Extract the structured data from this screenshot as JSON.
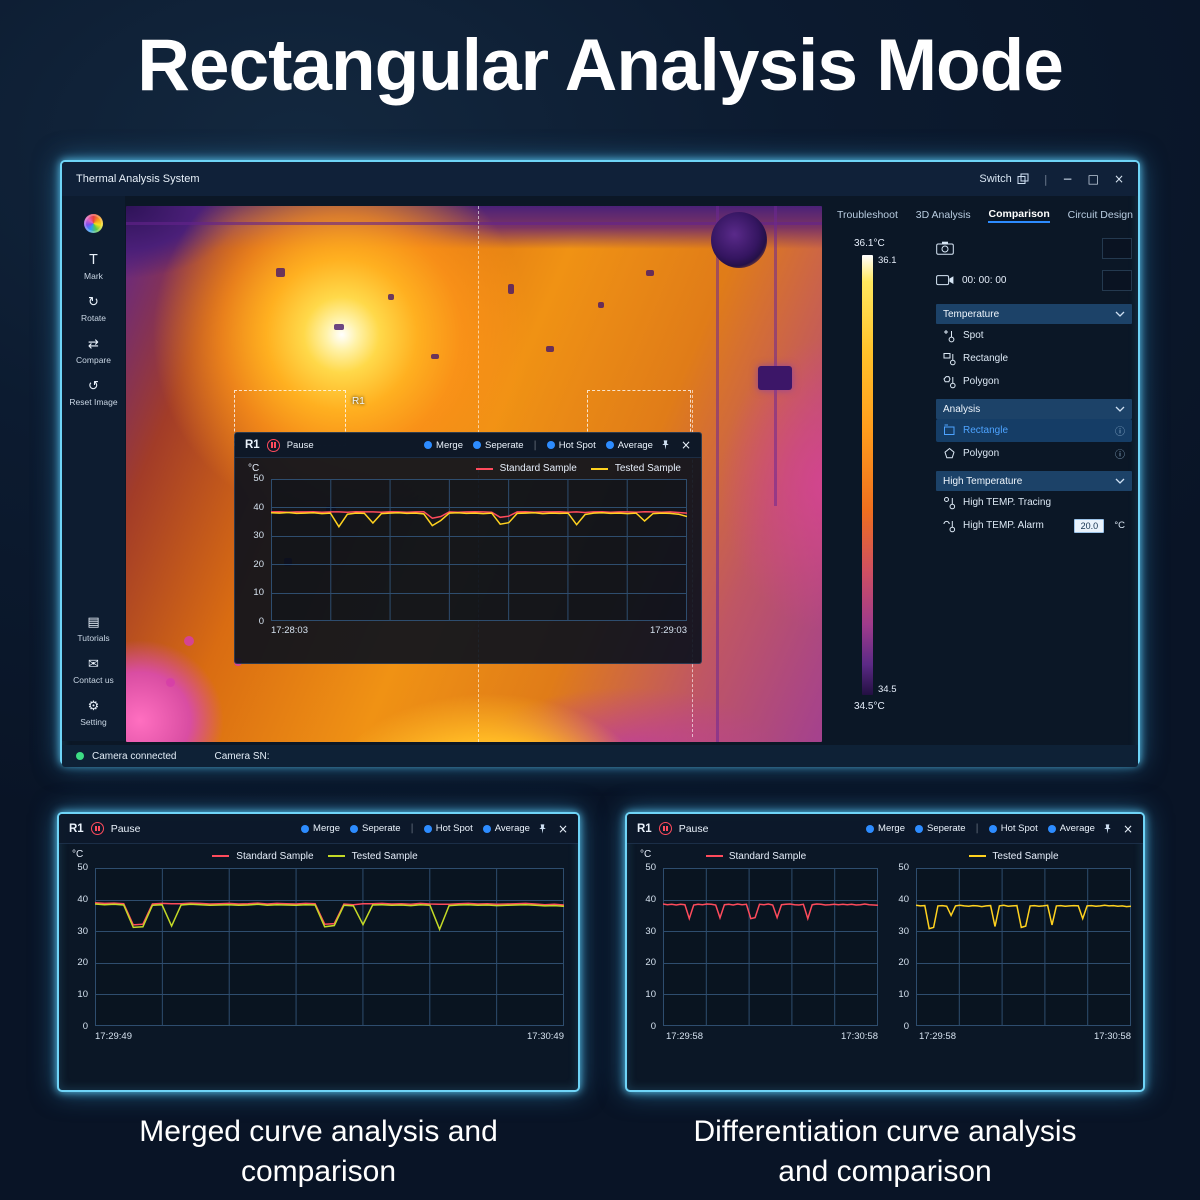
{
  "page": {
    "title": "Rectangular Analysis Mode",
    "captions": {
      "left": "Merged curve analysis and comparison",
      "right": "Differentiation curve analysis and comparison"
    }
  },
  "colors": {
    "accent_blue": "#2d8cff",
    "glow_cyan": "#6fd4f7",
    "standard_red": "#ff4b5c",
    "tested_yellow": "#ffd21f",
    "tested_green": "#c3d926",
    "status_green": "#3ddc84"
  },
  "icons": {
    "close_glyph": "×",
    "minimize_glyph": "−",
    "maximize_glyph": "□",
    "info_glyph": "ⓘ",
    "divider_glyph": "|",
    "mark_glyph": "T",
    "rotate_glyph": "↻",
    "compare_glyph": "⇄",
    "reset_glyph": "↺",
    "tutorials_glyph": "▤",
    "contact_glyph": "✉",
    "setting_glyph": "⚙"
  },
  "window": {
    "title": "Thermal Analysis System",
    "switch_label": "Switch",
    "statusbar": {
      "camera_status": "Camera connected",
      "camera_sn": "Camera SN:"
    }
  },
  "sidebar": {
    "items": [
      {
        "label": "Mark"
      },
      {
        "label": "Rotate"
      },
      {
        "label": "Compare"
      },
      {
        "label": "Reset Image"
      },
      {
        "label": "Tutorials"
      },
      {
        "label": "Contact us"
      },
      {
        "label": "Setting"
      }
    ]
  },
  "right_panel": {
    "tabs": [
      {
        "label": "Troubleshoot"
      },
      {
        "label": "3D Analysis"
      },
      {
        "label": "Comparison"
      },
      {
        "label": "Circuit Design"
      }
    ],
    "active_tab": "Comparison",
    "record_time": "00: 00: 00",
    "temperature_section": {
      "title": "Temperature",
      "items": [
        {
          "label": "Spot"
        },
        {
          "label": "Rectangle"
        },
        {
          "label": "Polygon"
        }
      ]
    },
    "analysis_section": {
      "title": "Analysis",
      "items": [
        {
          "label": "Rectangle"
        },
        {
          "label": "Polygon"
        }
      ]
    },
    "high_temp_section": {
      "title": "High Temperature",
      "tracing_label": "High TEMP. Tracing",
      "alarm_label": "High TEMP. Alarm",
      "alarm_value": "20.0",
      "alarm_unit": "°C"
    }
  },
  "scale_bar": {
    "top_label": "36.1°C",
    "top_tick": "36.1",
    "bottom_tick": "34.5",
    "bottom_label": "34.5°C"
  },
  "thermal": {
    "roi_label": "R1"
  },
  "chart_header": {
    "marker": "R1",
    "pause_label": "Pause",
    "options": [
      "Merge",
      "Seperate",
      "Hot Spot",
      "Average"
    ]
  },
  "chart_data": {
    "overlay": {
      "type": "line",
      "unit": "°C",
      "ylim": [
        0,
        50
      ],
      "yticks": [
        0,
        10,
        20,
        30,
        40,
        50
      ],
      "vdiv": 7,
      "x_labels": [
        "17:28:03",
        "17:29:03"
      ],
      "series": [
        {
          "name": "Standard Sample",
          "color": "#ff4b5c",
          "values": [
            38.4,
            38.5,
            38.3,
            38.4,
            38.4,
            38.5,
            38.3,
            38.4,
            38.4,
            38.3,
            38.5,
            38.4,
            38.4,
            38.3,
            38.5,
            38.4,
            38.3,
            38.4,
            38.5,
            36.2,
            36.8,
            38.4,
            38.3,
            38.4,
            38.5,
            38.4,
            38.3,
            36.5,
            36.9,
            38.4,
            38.5,
            38.3,
            38.4,
            38.4,
            38.5,
            38.3,
            38.4,
            38.2,
            38.4,
            38.5,
            38.3,
            38.4,
            38.4,
            38.3,
            38.5,
            38.4,
            38.3,
            38.4,
            38.2,
            38.0
          ]
        },
        {
          "name": "Tested Sample",
          "color": "#ffd21f",
          "values": [
            38.1,
            38.0,
            38.2,
            37.9,
            38.0,
            38.1,
            37.8,
            38.0,
            33.2,
            37.6,
            38.0,
            37.9,
            34.5,
            37.8,
            38.0,
            38.1,
            37.9,
            38.0,
            37.7,
            33.6,
            35.4,
            38.0,
            38.1,
            37.9,
            38.0,
            37.8,
            38.0,
            34.1,
            34.6,
            37.9,
            38.0,
            38.1,
            37.8,
            38.0,
            37.9,
            38.0,
            33.9,
            37.5,
            38.0,
            38.1,
            37.9,
            38.0,
            37.8,
            38.0,
            35.2,
            37.8,
            38.0,
            37.9,
            37.6,
            36.8
          ]
        }
      ]
    },
    "merged": {
      "type": "line",
      "unit": "°C",
      "ylim": [
        0,
        50
      ],
      "yticks": [
        0,
        10,
        20,
        30,
        40,
        50
      ],
      "vdiv": 7,
      "x_labels": [
        "17:29:49",
        "17:30:49"
      ],
      "series": [
        {
          "name": "Standard Sample",
          "color": "#ff4b5c",
          "values": [
            39.0,
            38.8,
            38.9,
            38.7,
            32.0,
            32.2,
            38.6,
            38.8,
            38.7,
            38.7,
            38.9,
            38.8,
            38.6,
            38.7,
            38.8,
            38.6,
            38.7,
            38.9,
            38.6,
            38.8,
            38.7,
            38.6,
            38.8,
            38.7,
            32.2,
            32.4,
            38.6,
            38.4,
            38.7,
            38.7,
            38.8,
            38.6,
            38.7,
            38.5,
            38.8,
            38.6,
            38.5,
            38.5,
            38.7,
            38.8,
            38.6,
            38.7,
            38.5,
            38.6,
            38.7,
            38.8,
            38.6,
            38.4,
            38.5,
            38.3
          ]
        },
        {
          "name": "Tested Sample",
          "color": "#c3d926",
          "values": [
            38.6,
            38.4,
            38.5,
            38.3,
            31.2,
            31.4,
            38.2,
            38.4,
            31.6,
            38.3,
            38.5,
            38.4,
            38.2,
            38.3,
            38.4,
            38.2,
            38.3,
            38.5,
            38.2,
            38.4,
            38.3,
            38.2,
            38.4,
            38.3,
            31.4,
            31.8,
            38.2,
            38.0,
            32.1,
            38.3,
            38.4,
            38.2,
            38.3,
            38.1,
            38.4,
            38.2,
            30.6,
            38.1,
            38.3,
            38.4,
            38.2,
            38.3,
            38.1,
            38.2,
            38.3,
            38.4,
            38.2,
            38.0,
            38.1,
            37.9
          ]
        }
      ]
    },
    "diff_standard": {
      "type": "line",
      "unit": "°C",
      "ylim": [
        0,
        50
      ],
      "yticks": [
        0,
        10,
        20,
        30,
        40,
        50
      ],
      "vdiv": 5,
      "x_labels": [
        "17:29:58",
        "17:30:58"
      ],
      "series": [
        {
          "name": "Standard Sample",
          "color": "#ff4b5c",
          "values": [
            38.6,
            38.4,
            38.5,
            38.3,
            38.5,
            38.4,
            34.0,
            38.3,
            38.5,
            38.4,
            38.6,
            38.5,
            38.3,
            34.2,
            38.4,
            38.5,
            38.3,
            38.6,
            38.4,
            38.5,
            34.0,
            34.3,
            38.5,
            38.4,
            38.6,
            38.3,
            34.3,
            38.4,
            38.5,
            38.6,
            38.4,
            38.3,
            38.5,
            34.0,
            38.4,
            38.6,
            38.5,
            38.3,
            38.4,
            38.5,
            38.4,
            38.5,
            38.4,
            38.5,
            38.3,
            38.4,
            38.6,
            38.4,
            38.3,
            38.2
          ]
        }
      ]
    },
    "diff_tested": {
      "type": "line",
      "unit": "°C",
      "ylim": [
        0,
        50
      ],
      "yticks": [
        0,
        10,
        20,
        30,
        40,
        50
      ],
      "vdiv": 5,
      "x_labels": [
        "17:29:58",
        "17:30:58"
      ],
      "series": [
        {
          "name": "Tested Sample",
          "color": "#ffd21f",
          "values": [
            38.2,
            38.0,
            38.1,
            30.8,
            31.2,
            38.0,
            38.1,
            37.9,
            35.0,
            38.0,
            38.2,
            38.0,
            37.9,
            38.1,
            38.0,
            37.8,
            38.0,
            38.1,
            31.5,
            38.0,
            38.2,
            37.9,
            38.0,
            38.1,
            31.2,
            31.6,
            38.0,
            38.1,
            37.9,
            38.0,
            38.2,
            32.0,
            38.0,
            38.1,
            37.9,
            38.0,
            38.1,
            38.0,
            34.0,
            38.0,
            38.1,
            37.9,
            38.0,
            38.2,
            38.0,
            38.1,
            37.9,
            38.0,
            37.8,
            37.9
          ]
        }
      ]
    }
  }
}
